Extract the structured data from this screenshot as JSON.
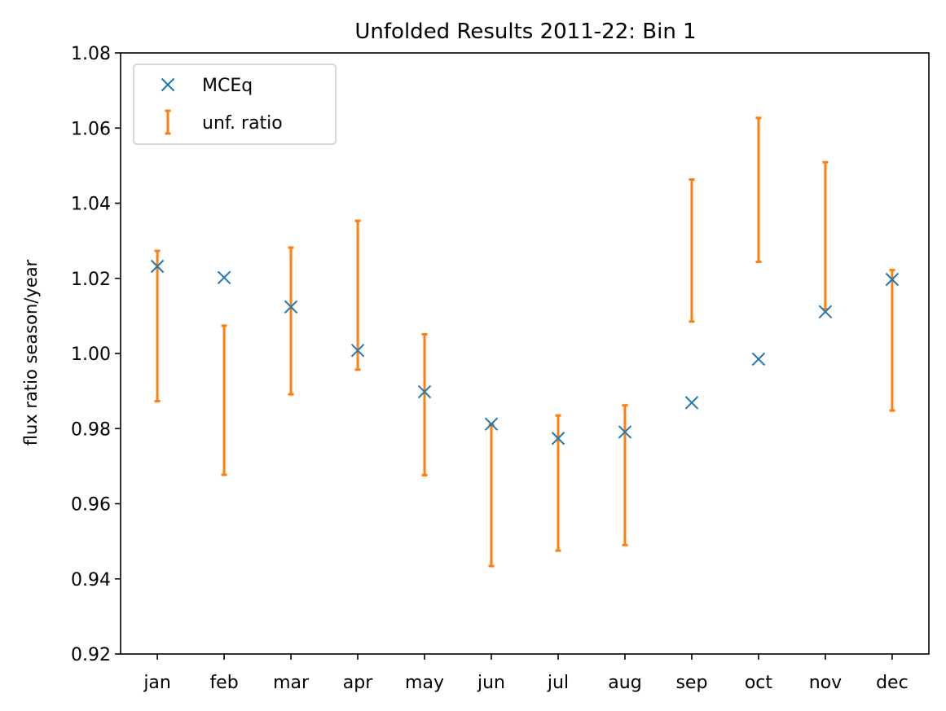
{
  "chart_data": {
    "type": "scatter",
    "title": "Unfolded Results 2011-22: Bin 1",
    "xlabel": "",
    "ylabel": "flux ratio season/year",
    "categories": [
      "jan",
      "feb",
      "mar",
      "apr",
      "may",
      "jun",
      "jul",
      "aug",
      "sep",
      "oct",
      "nov",
      "dec"
    ],
    "ylim": [
      0.92,
      1.08
    ],
    "yticks": [
      "0.92",
      "0.94",
      "0.96",
      "0.98",
      "1.00",
      "1.02",
      "1.04",
      "1.06",
      "1.08"
    ],
    "grid": false,
    "legend_position": "top-left",
    "series": [
      {
        "name": "MCEq",
        "marker": "x",
        "color": "#1f77b4",
        "values": [
          1.0232,
          1.0202,
          1.0124,
          1.0008,
          0.9898,
          0.9812,
          0.9774,
          0.9791,
          0.9869,
          0.9985,
          1.0111,
          1.0197
        ]
      },
      {
        "name": "unf. ratio",
        "marker": "errorbar",
        "color": "#ff7f0e",
        "lower": [
          0.9873,
          0.9677,
          0.9891,
          0.9957,
          0.9676,
          0.9434,
          0.9475,
          0.949,
          1.0085,
          1.0244,
          1.0118,
          0.9848
        ],
        "upper": [
          1.0273,
          1.0074,
          1.0282,
          1.0353,
          1.0051,
          0.981,
          0.9835,
          0.9862,
          1.0463,
          1.0627,
          1.0509,
          1.0222
        ]
      }
    ]
  }
}
